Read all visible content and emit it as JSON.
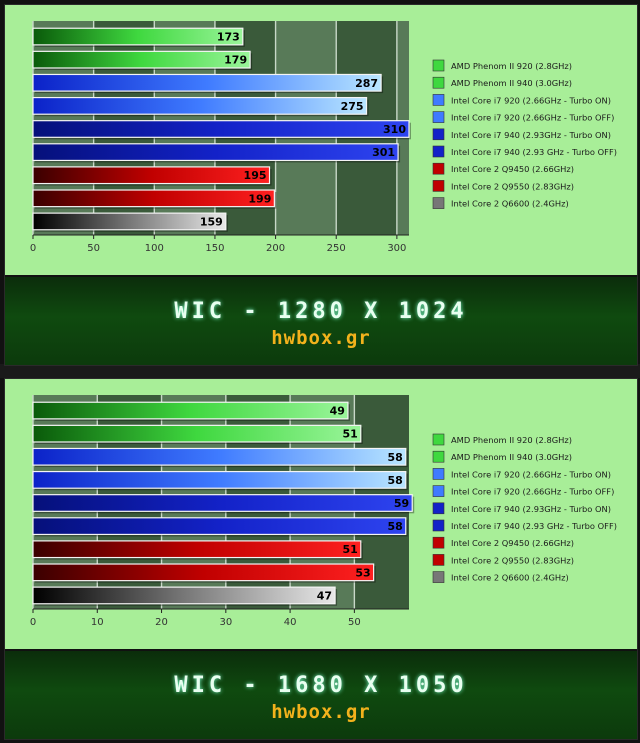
{
  "legend": [
    {
      "name": "AMD Phenom II 920 (2.8GHz)",
      "color": "#1fae1f"
    },
    {
      "name": "AMD Phenom II 940 (3.0GHz)",
      "color": "#1fae1f"
    },
    {
      "name": "Intel Core i7 920 (2.66GHz - Turbo ON)",
      "color": "#2255ee"
    },
    {
      "name": "Intel Core i7 920 (2.66GHz - Turbo OFF)",
      "color": "#2a66ff"
    },
    {
      "name": "Intel Core i7 940 (2.93GHz - Turbo ON)",
      "color": "#0f16b8"
    },
    {
      "name": "Intel Core i7 940 (2.93 GHz - Turbo OFF)",
      "color": "#0f16b8"
    },
    {
      "name": "Intel Core 2 Q9450 (2.66GHz)",
      "color": "#b00000"
    },
    {
      "name": "Intel Core 2 Q9550 (2.83GHz)",
      "color": "#b00000"
    },
    {
      "name": "Intel Core 2 Q6600 (2.4GHz)",
      "color": "#666666"
    }
  ],
  "legend_bottom": [
    "AMD Phenom II 920 (2.8GHz)",
    "AMD Phenom II 940 (3.0GHz)",
    "Intel Core i7 920 (2.66GHz - Turbo ON)",
    "Intel Core i7 920 (2.66GHz - Turbo OFF)",
    "Intel Core i7 940 (2.93GHz - Turbo ON)",
    "Intel Core i7 940 (2.93 GHz - Turbo OFF)",
    "Intel Core 2 Q9450 (2.66GHz)",
    "Intel Core 2 Q9550 (2.83GHz)",
    "Intel Core 2 Q6600 (2.4GHz)"
  ],
  "chart_data": [
    {
      "type": "bar",
      "orientation": "horizontal",
      "title": "WIC - 1280 X 1024",
      "site": "hwbox.gr",
      "values": [
        173,
        179,
        287,
        275,
        310,
        301,
        195,
        199,
        159
      ],
      "xlim": [
        0,
        310
      ],
      "xticks": [
        0,
        50,
        100,
        150,
        200,
        250,
        300
      ],
      "bar_styles": [
        "green",
        "green",
        "blue",
        "blue",
        "navy",
        "navy",
        "red",
        "red",
        "gray"
      ],
      "legend_placement": "right"
    },
    {
      "type": "bar",
      "orientation": "horizontal",
      "title": "WIC - 1680 X 1050",
      "site": "hwbox.gr",
      "values": [
        49,
        51,
        58,
        58,
        59,
        58,
        51,
        53,
        47
      ],
      "xlim": [
        0,
        58.5
      ],
      "xticks": [
        0,
        10,
        20,
        30,
        40,
        50
      ],
      "bar_styles": [
        "green",
        "green",
        "blue",
        "blue",
        "navy",
        "navy",
        "red",
        "red",
        "gray"
      ],
      "legend_placement": "right"
    }
  ]
}
